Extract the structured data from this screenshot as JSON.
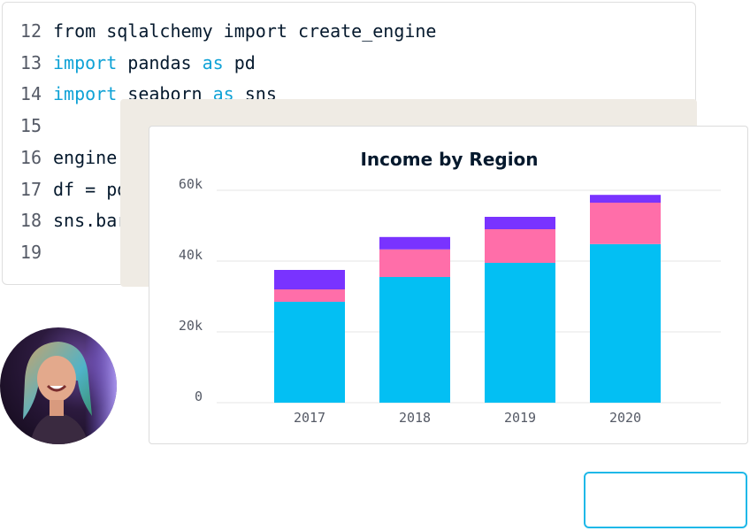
{
  "code": {
    "lines": [
      {
        "num": "12",
        "tokens": [
          {
            "t": "from sqlalchemy import create_engine",
            "k": false
          }
        ]
      },
      {
        "num": "13",
        "tokens": [
          {
            "t": "import",
            "k": true
          },
          {
            "t": " pandas ",
            "k": false
          },
          {
            "t": "as",
            "k": true
          },
          {
            "t": " pd",
            "k": false
          }
        ]
      },
      {
        "num": "14",
        "tokens": [
          {
            "t": "import",
            "k": true
          },
          {
            "t": " seaborn ",
            "k": false
          },
          {
            "t": "as",
            "k": true
          },
          {
            "t": " sns",
            "k": false
          }
        ]
      },
      {
        "num": "15",
        "tokens": []
      },
      {
        "num": "16",
        "tokens": [
          {
            "t": "engine =",
            "k": false
          }
        ]
      },
      {
        "num": "17",
        "tokens": [
          {
            "t": "df = pd.r",
            "k": false
          }
        ]
      },
      {
        "num": "18",
        "tokens": [
          {
            "t": "sns.barp",
            "k": false
          }
        ]
      },
      {
        "num": "19",
        "tokens": []
      }
    ]
  },
  "chart_data": {
    "type": "bar",
    "stacked": true,
    "title": "Income by Region",
    "categories": [
      "2017",
      "2018",
      "2019",
      "2020"
    ],
    "series": [
      {
        "color": "#03bff3",
        "values": [
          28500,
          35500,
          39500,
          44800
        ]
      },
      {
        "color": "#ff6ea9",
        "values": [
          3500,
          7800,
          9500,
          11700
        ]
      },
      {
        "color": "#7933ff",
        "values": [
          5500,
          3500,
          3500,
          2200
        ]
      }
    ],
    "ylim": [
      0,
      60000
    ],
    "yticks": [
      0,
      20000,
      40000,
      60000
    ],
    "ytick_labels": [
      "0",
      "20k",
      "40k",
      "60k"
    ],
    "grid": true
  },
  "colors": {
    "keyword": "#0fa2d6",
    "text": "#05192d",
    "grid": "#e6e6e6",
    "accent_border": "#1fb8e8"
  }
}
